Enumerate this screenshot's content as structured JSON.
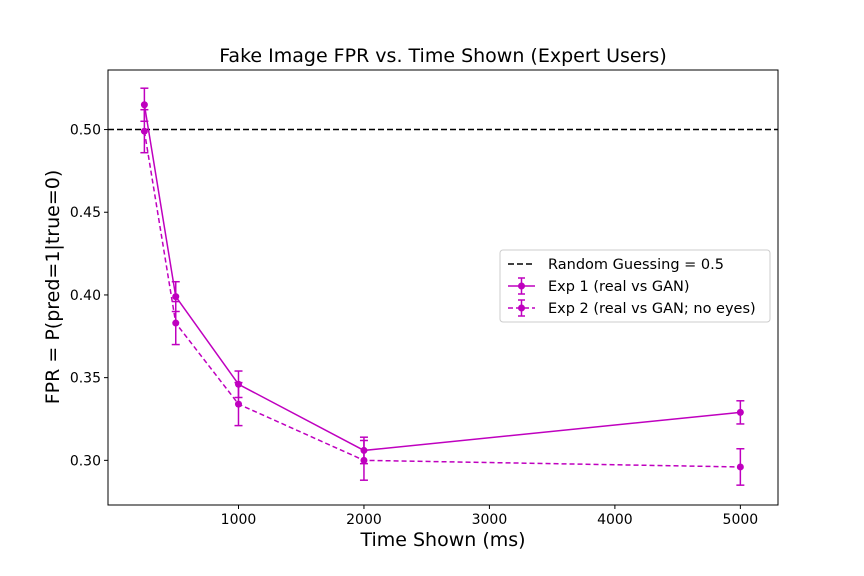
{
  "chart_data": {
    "type": "line",
    "title": "Fake Image FPR vs. Time Shown (Expert Users)",
    "xlabel": "Time Shown (ms)",
    "ylabel": "FPR = P(pred=1|true=0)",
    "xlim": [
      -40,
      5300
    ],
    "ylim": [
      0.273,
      0.536
    ],
    "xticks": [
      1000,
      2000,
      3000,
      4000,
      5000
    ],
    "yticks": [
      0.3,
      0.35,
      0.4,
      0.45,
      0.5
    ],
    "xtick_labels": [
      "1000",
      "2000",
      "3000",
      "4000",
      "5000"
    ],
    "ytick_labels": [
      "0.30",
      "0.35",
      "0.40",
      "0.45",
      "0.50"
    ],
    "grid": false,
    "legend_position": "center-right",
    "reference_line": {
      "name": "Random Guessing = 0.5",
      "y": 0.5,
      "color": "#000000",
      "style": "dashed"
    },
    "series": [
      {
        "name": "Exp 1 (real vs GAN)",
        "color": "#bf00bf",
        "style": "solid",
        "x": [
          250,
          500,
          1000,
          2000,
          5000
        ],
        "y": [
          0.515,
          0.399,
          0.346,
          0.306,
          0.329
        ],
        "err": [
          0.01,
          0.009,
          0.008,
          0.008,
          0.007
        ]
      },
      {
        "name": "Exp 2 (real vs GAN; no eyes)",
        "color": "#bf00bf",
        "style": "dashed",
        "x": [
          250,
          500,
          1000,
          2000,
          5000
        ],
        "y": [
          0.499,
          0.383,
          0.334,
          0.3,
          0.296
        ],
        "err": [
          0.013,
          0.013,
          0.013,
          0.012,
          0.011
        ]
      }
    ]
  }
}
